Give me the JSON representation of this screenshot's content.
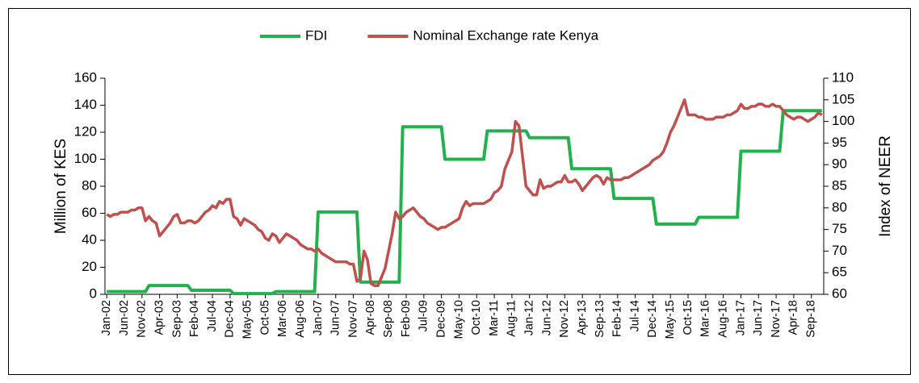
{
  "chart_data": {
    "type": "line",
    "legend": "top",
    "y_label": "Million of KES",
    "y2_label": "Index of NEER",
    "ylim": [
      0,
      160
    ],
    "yticks": [
      0,
      20,
      40,
      60,
      80,
      100,
      120,
      140,
      160
    ],
    "y2lim": [
      60,
      110
    ],
    "y2ticks": [
      60,
      65,
      70,
      75,
      80,
      85,
      90,
      95,
      100,
      105,
      110
    ],
    "categories": [
      "Jan-02",
      null,
      null,
      null,
      null,
      "Jun-02",
      null,
      null,
      null,
      null,
      "Nov-02",
      null,
      null,
      null,
      null,
      "Apr-03",
      null,
      null,
      null,
      null,
      "Sep-03",
      null,
      null,
      null,
      null,
      "Feb-04",
      null,
      null,
      null,
      null,
      "Jul-04",
      null,
      null,
      null,
      null,
      "Dec-04",
      null,
      null,
      null,
      null,
      "May-05",
      null,
      null,
      null,
      null,
      "Oct-05",
      null,
      null,
      null,
      null,
      "Mar-06",
      null,
      null,
      null,
      null,
      "Aug-06",
      null,
      null,
      null,
      null,
      "Jan-07",
      null,
      null,
      null,
      null,
      "Jun-07",
      null,
      null,
      null,
      null,
      "Nov-07",
      null,
      null,
      null,
      null,
      "Apr-08",
      null,
      null,
      null,
      null,
      "Sep-08",
      null,
      null,
      null,
      null,
      "Feb-09",
      null,
      null,
      null,
      null,
      "Jul-09",
      null,
      null,
      null,
      null,
      "Dec-09",
      null,
      null,
      null,
      null,
      "May-10",
      null,
      null,
      null,
      null,
      "Oct-10",
      null,
      null,
      null,
      null,
      "Mar-11",
      null,
      null,
      null,
      null,
      "Aug-11",
      null,
      null,
      null,
      null,
      "Jan-12",
      null,
      null,
      null,
      null,
      "Jun-12",
      null,
      null,
      null,
      null,
      "Nov-12",
      null,
      null,
      null,
      null,
      "Apr-13",
      null,
      null,
      null,
      null,
      "Sep-13",
      null,
      null,
      null,
      null,
      "Feb-14",
      null,
      null,
      null,
      null,
      "Jul-14",
      null,
      null,
      null,
      null,
      "Dec-14",
      null,
      null,
      null,
      null,
      "May-15",
      null,
      null,
      null,
      null,
      "Oct-15",
      null,
      null,
      null,
      null,
      "Mar-16",
      null,
      null,
      null,
      null,
      "Aug-16",
      null,
      null,
      null,
      null,
      "Jan-17",
      null,
      null,
      null,
      null,
      "Jun-17",
      null,
      null,
      null,
      null,
      "Nov-17",
      null,
      null,
      null,
      null,
      "Apr-18",
      null,
      null,
      null,
      null,
      "Sep-18",
      null,
      null,
      null
    ],
    "series": [
      {
        "name": "FDI",
        "color": "#22b14c",
        "values": [
          2,
          2,
          2,
          2,
          2,
          2,
          2,
          2,
          2,
          2,
          2,
          2,
          6.5,
          6.5,
          6.5,
          6.5,
          6.5,
          6.5,
          6.5,
          6.5,
          6.5,
          6.5,
          6.5,
          6.5,
          3,
          3,
          3,
          3,
          3,
          3,
          3,
          3,
          3,
          3,
          3,
          3,
          0.5,
          0.5,
          0.5,
          0.5,
          0.5,
          0.5,
          0.5,
          0.5,
          0.5,
          0.5,
          0.5,
          0.5,
          2,
          2,
          2,
          2,
          2,
          2,
          2,
          2,
          2,
          2,
          2,
          2,
          61,
          61,
          61,
          61,
          61,
          61,
          61,
          61,
          61,
          61,
          61,
          61,
          9,
          9,
          9,
          9,
          9,
          9,
          9,
          9,
          9,
          9,
          9,
          9,
          124,
          124,
          124,
          124,
          124,
          124,
          124,
          124,
          124,
          124,
          124,
          124,
          100,
          100,
          100,
          100,
          100,
          100,
          100,
          100,
          100,
          100,
          100,
          100,
          121,
          121,
          121,
          121,
          121,
          121,
          121,
          121,
          121,
          121,
          121,
          121,
          116,
          116,
          116,
          116,
          116,
          116,
          116,
          116,
          116,
          116,
          116,
          116,
          93,
          93,
          93,
          93,
          93,
          93,
          93,
          93,
          93,
          93,
          93,
          93,
          71,
          71,
          71,
          71,
          71,
          71,
          71,
          71,
          71,
          71,
          71,
          71,
          52,
          52,
          52,
          52,
          52,
          52,
          52,
          52,
          52,
          52,
          52,
          52,
          57,
          57,
          57,
          57,
          57,
          57,
          57,
          57,
          57,
          57,
          57,
          57,
          106,
          106,
          106,
          106,
          106,
          106,
          106,
          106,
          106,
          106,
          106,
          106,
          136,
          136,
          136,
          136,
          136,
          136,
          136,
          136,
          136,
          136,
          136,
          136
        ]
      },
      {
        "name": "Nominal Exchange rate Kenya",
        "color": "#c0504d",
        "axis": "y2",
        "values": [
          78.5,
          78,
          78.5,
          78.5,
          79,
          79,
          79,
          79.5,
          79.5,
          80,
          80,
          77,
          78,
          77,
          76.5,
          73.5,
          74.5,
          75.5,
          76.5,
          78,
          78.5,
          76.5,
          76.5,
          77,
          77,
          76.5,
          77,
          78,
          79,
          79.5,
          80.5,
          80,
          81.5,
          81,
          82,
          82,
          78,
          77.5,
          76,
          77.5,
          77,
          76.5,
          76,
          75,
          74.5,
          73,
          72.5,
          74,
          73.5,
          72,
          73,
          74,
          73.5,
          73,
          72.5,
          71.5,
          71,
          70.5,
          70.5,
          70,
          70.5,
          69.5,
          69,
          68.5,
          68,
          67.5,
          67.5,
          67.5,
          67.5,
          67,
          67,
          63,
          63.5,
          70,
          68,
          62.5,
          62,
          62,
          64,
          66,
          70,
          74,
          79,
          77.5,
          78,
          79,
          79.5,
          80,
          79,
          78,
          77.5,
          76.5,
          76,
          75.5,
          75,
          75.5,
          75.5,
          76,
          76.5,
          77,
          77.5,
          80,
          81.5,
          80.5,
          81,
          81,
          81,
          81,
          81.5,
          82,
          83.5,
          84,
          85,
          89,
          91,
          93,
          100,
          99,
          92,
          85,
          84,
          83,
          83,
          86.5,
          84.5,
          85,
          85,
          85.5,
          86,
          86,
          87.5,
          86,
          86,
          86.5,
          85.5,
          84,
          85,
          86,
          87,
          87.5,
          87,
          85.5,
          87,
          86.5,
          86.5,
          86.5,
          86.5,
          87,
          87,
          87.5,
          88,
          88.5,
          89,
          89.5,
          90,
          91,
          91.5,
          92,
          93,
          95,
          97.5,
          99,
          101,
          103,
          105,
          101.5,
          101.5,
          101.5,
          101,
          101,
          100.5,
          100.5,
          100.5,
          101,
          101,
          101,
          101.5,
          101.5,
          102,
          102.5,
          104,
          103,
          103,
          103.5,
          103.5,
          104,
          104,
          103.5,
          103.5,
          104,
          103.5,
          103.5,
          102.5,
          101.5,
          101,
          100.5,
          101,
          101,
          100.5,
          100,
          100.5,
          101,
          102,
          101.5
        ]
      }
    ]
  }
}
